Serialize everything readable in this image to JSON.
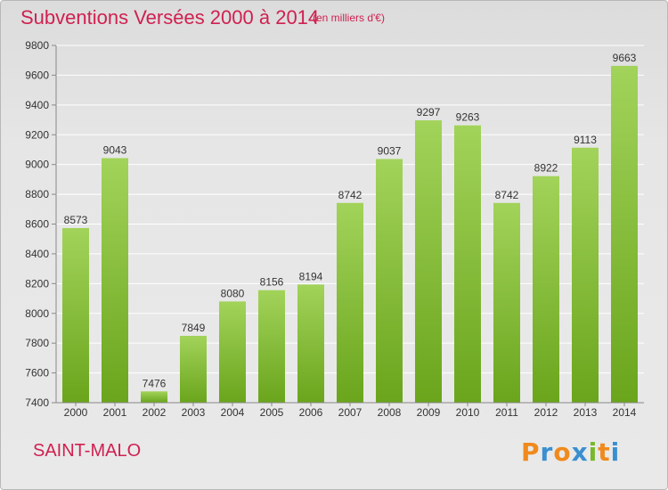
{
  "header": {
    "title": "Subventions Versées 2000 à 2014",
    "subtitle": "(en milliers d'€)"
  },
  "footer": {
    "city": "SAINT-MALO",
    "brand": "Proxiti"
  },
  "colors": {
    "title": "#d02050",
    "bar_light": "#a2d35a",
    "bar_dark": "#6aa51c",
    "brand_letters": [
      "#f08a1c",
      "#3a8fd0",
      "#f08a1c",
      "#3a8fd0",
      "#78b82a",
      "#f08a1c",
      "#3a8fd0"
    ]
  },
  "chart_data": {
    "type": "bar",
    "title": "Subventions Versées 2000 à 2014",
    "xlabel": "",
    "ylabel": "",
    "categories": [
      "2000",
      "2001",
      "2002",
      "2003",
      "2004",
      "2005",
      "2006",
      "2007",
      "2008",
      "2009",
      "2010",
      "2011",
      "2012",
      "2013",
      "2014"
    ],
    "values": [
      8573,
      9043,
      7476,
      7849,
      8080,
      8156,
      8194,
      8742,
      9037,
      9297,
      9263,
      8742,
      8922,
      9113,
      9663
    ],
    "ylim": [
      7400,
      9800
    ],
    "yticks": [
      7400,
      7600,
      7800,
      8000,
      8200,
      8400,
      8600,
      8800,
      9000,
      9200,
      9400,
      9600,
      9800
    ],
    "grid": true,
    "legend": "none"
  }
}
